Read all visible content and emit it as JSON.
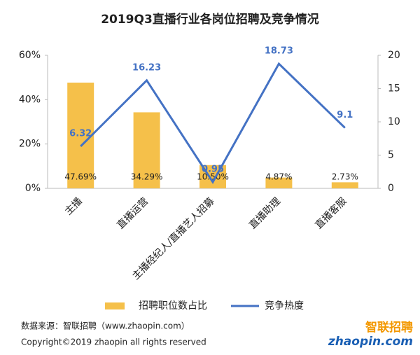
{
  "chart_data": {
    "type": "bar",
    "title": "2019Q3直播行业各岗位招聘及竞争情况",
    "categories": [
      "主播",
      "直播运营",
      "主播经纪人/直播艺人招募",
      "直播助理",
      "直播客服"
    ],
    "series": [
      {
        "name": "招聘职位数占比",
        "type": "bar",
        "color": "#f5c04a",
        "values": [
          47.69,
          34.29,
          10.5,
          4.87,
          2.73
        ],
        "value_labels": [
          "47.69%",
          "34.29%",
          "10.50%",
          "4.87%",
          "2.73%"
        ]
      },
      {
        "name": "竞争热度",
        "type": "line",
        "axis": "y2",
        "color": "#4472c4",
        "values": [
          6.32,
          16.23,
          0.95,
          18.73,
          9.1
        ]
      }
    ],
    "ylim": [
      0,
      60
    ],
    "yticks": [
      {
        "value": 0,
        "label": "0%"
      },
      {
        "value": 20,
        "label": "20%"
      },
      {
        "value": 40,
        "label": "40%"
      },
      {
        "value": 60,
        "label": "60%"
      }
    ],
    "y2lim": [
      0,
      20
    ],
    "y2ticks": [
      0,
      5,
      10,
      15,
      20
    ],
    "legend": "bottom"
  },
  "footer": {
    "source": "数据来源：智联招聘（www.zhaopin.com）",
    "copyright": "Copyright©2019 zhaopin all rights reserved"
  },
  "logo": {
    "cn": "智联招聘",
    "en": "zhaopin.com"
  }
}
